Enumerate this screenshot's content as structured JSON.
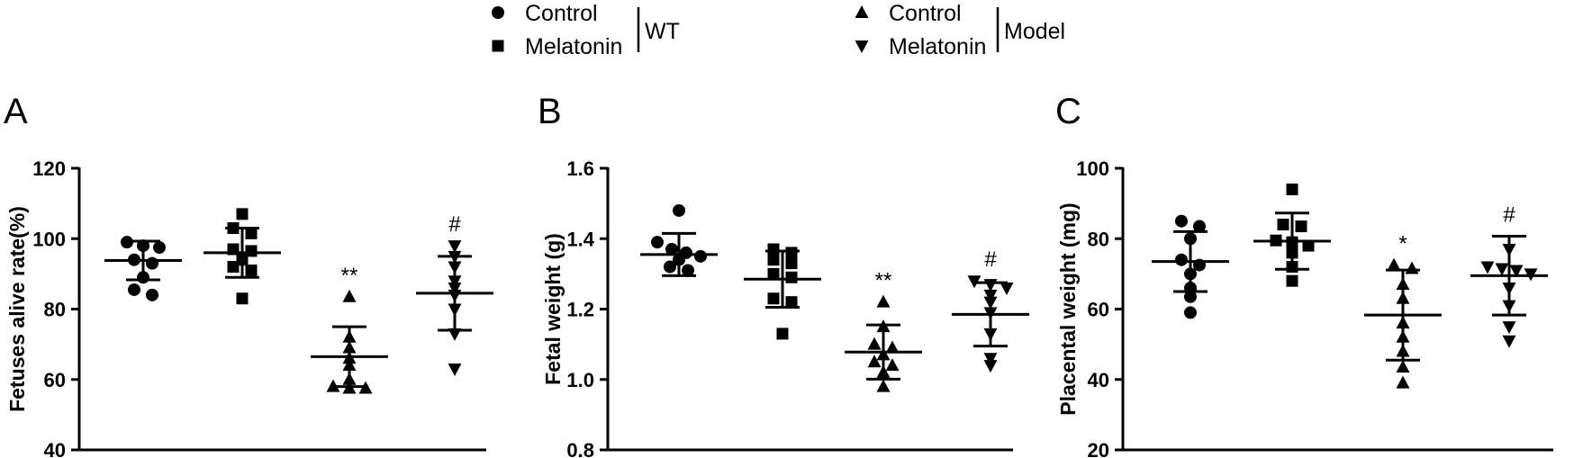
{
  "legend": {
    "groups": [
      {
        "name": "WT",
        "entries": [
          {
            "label": "Control",
            "marker": "circle"
          },
          {
            "label": "Melatonin",
            "marker": "square"
          }
        ]
      },
      {
        "name": "Model",
        "entries": [
          {
            "label": "Control",
            "marker": "triangle-up"
          },
          {
            "label": "Melatonin",
            "marker": "triangle-down"
          }
        ]
      }
    ]
  },
  "chart_data": [
    {
      "type": "scatter",
      "panel": "A",
      "ylabel": "Fetuses alive rate(%)",
      "ylim": [
        40,
        120
      ],
      "yticks": [
        "40",
        "60",
        "80",
        "100",
        "120"
      ],
      "groups": [
        {
          "name": "WT Control",
          "marker": "circle",
          "mean": 93.8,
          "sd": 5.5,
          "annotation": "",
          "points": [
            98,
            99,
            97.5,
            94,
            93,
            89,
            85.5,
            84
          ]
        },
        {
          "name": "WT Melatonin",
          "marker": "square",
          "mean": 96,
          "sd": 7,
          "annotation": "",
          "points": [
            107,
            103,
            101.5,
            97,
            96.5,
            94,
            92,
            91,
            83
          ]
        },
        {
          "name": "Model Control",
          "marker": "triangle-up",
          "mean": 66.5,
          "sd": 8.5,
          "annotation": "**",
          "points": [
            83.5,
            72,
            69,
            66,
            64,
            60,
            58,
            57.5,
            57.5
          ]
        },
        {
          "name": "Model Melatonin",
          "marker": "triangle-down",
          "mean": 84.5,
          "sd": 10.5,
          "annotation": "#",
          "points": [
            98,
            95,
            92,
            88,
            86,
            84,
            80,
            73,
            63
          ]
        }
      ]
    },
    {
      "type": "scatter",
      "panel": "B",
      "ylabel": "Fetal weight (g)",
      "ylim": [
        0.8,
        1.6
      ],
      "yticks": [
        "0.8",
        "1.0",
        "1.2",
        "1.4",
        "1.6"
      ],
      "groups": [
        {
          "name": "WT Control",
          "marker": "circle",
          "mean": 1.355,
          "sd": 0.06,
          "annotation": "",
          "points": [
            1.48,
            1.39,
            1.37,
            1.36,
            1.35,
            1.34,
            1.32,
            1.31
          ]
        },
        {
          "name": "WT Melatonin",
          "marker": "square",
          "mean": 1.285,
          "sd": 0.08,
          "annotation": "",
          "points": [
            1.37,
            1.36,
            1.34,
            1.33,
            1.3,
            1.29,
            1.23,
            1.22,
            1.13
          ]
        },
        {
          "name": "Model Control",
          "marker": "triangle-up",
          "mean": 1.078,
          "sd": 0.077,
          "annotation": "**",
          "points": [
            1.22,
            1.15,
            1.1,
            1.09,
            1.07,
            1.05,
            1.04,
            1.02,
            0.98
          ]
        },
        {
          "name": "Model Melatonin",
          "marker": "triangle-down",
          "mean": 1.185,
          "sd": 0.09,
          "annotation": "#",
          "points": [
            1.28,
            1.27,
            1.26,
            1.24,
            1.22,
            1.19,
            1.13,
            1.06,
            1.04
          ]
        }
      ]
    },
    {
      "type": "scatter",
      "panel": "C",
      "ylabel": "Placental weight (mg)",
      "ylim": [
        20,
        100
      ],
      "yticks": [
        "20",
        "40",
        "60",
        "80",
        "100"
      ],
      "groups": [
        {
          "name": "WT Control",
          "marker": "circle",
          "mean": 73.5,
          "sd": 8.5,
          "annotation": "",
          "points": [
            85,
            83.5,
            80,
            74,
            72.5,
            70,
            66,
            63.5,
            59
          ]
        },
        {
          "name": "WT Melatonin",
          "marker": "square",
          "mean": 79.3,
          "sd": 8,
          "annotation": "",
          "points": [
            94,
            84,
            83.5,
            79.5,
            79,
            78,
            76,
            72,
            68
          ]
        },
        {
          "name": "Model Control",
          "marker": "triangle-up",
          "mean": 58.3,
          "sd": 12.8,
          "annotation": "*",
          "points": [
            72.5,
            71.5,
            67,
            63,
            56,
            52,
            48,
            43.5,
            39
          ]
        },
        {
          "name": "Model Melatonin",
          "marker": "triangle-down",
          "mean": 69.5,
          "sd": 11.2,
          "annotation": "#",
          "points": [
            77,
            72,
            71.5,
            71,
            70,
            66,
            61,
            55,
            51
          ]
        }
      ]
    }
  ]
}
